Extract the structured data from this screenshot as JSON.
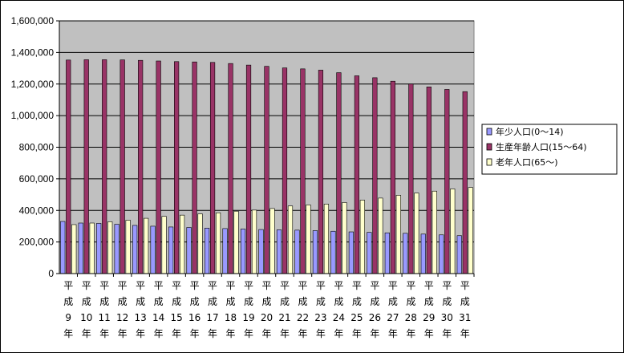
{
  "chart_data": {
    "type": "bar",
    "title": "",
    "xlabel": "",
    "ylabel": "",
    "ylim": [
      0,
      1600000
    ],
    "yticks": [
      "0",
      "200,000",
      "400,000",
      "600,000",
      "800,000",
      "1,000,000",
      "1,200,000",
      "1,400,000",
      "1,600,000"
    ],
    "grid": true,
    "legend_position": "right",
    "categories": [
      "平成9年",
      "平成10年",
      "平成11年",
      "平成12年",
      "平成13年",
      "平成14年",
      "平成15年",
      "平成16年",
      "平成17年",
      "平成18年",
      "平成19年",
      "平成20年",
      "平成21年",
      "平成22年",
      "平成23年",
      "平成24年",
      "平成25年",
      "平成26年",
      "平成27年",
      "平成28年",
      "平成29年",
      "平成30年",
      "平成31年"
    ],
    "series": [
      {
        "name": "年少人口(0～14)",
        "color": "#9999ff",
        "values": [
          330000,
          320000,
          318000,
          312000,
          305000,
          300000,
          295000,
          292000,
          288000,
          285000,
          282000,
          279000,
          277000,
          275000,
          272000,
          268000,
          264000,
          261000,
          258000,
          255000,
          250000,
          245000,
          240000
        ]
      },
      {
        "name": "生産年齢人口(15～64)",
        "color": "#993366",
        "values": [
          1352000,
          1354000,
          1354000,
          1353000,
          1350000,
          1346000,
          1342000,
          1340000,
          1337000,
          1330000,
          1320000,
          1312000,
          1302000,
          1296000,
          1288000,
          1272000,
          1252000,
          1240000,
          1218000,
          1200000,
          1182000,
          1166000,
          1152000
        ]
      },
      {
        "name": "老年人口(65～)",
        "color": "#ffffcc",
        "values": [
          310000,
          320000,
          328000,
          338000,
          350000,
          362000,
          370000,
          378000,
          385000,
          395000,
          402000,
          412000,
          428000,
          435000,
          440000,
          450000,
          465000,
          478000,
          496000,
          510000,
          522000,
          536000,
          545000
        ]
      }
    ]
  }
}
